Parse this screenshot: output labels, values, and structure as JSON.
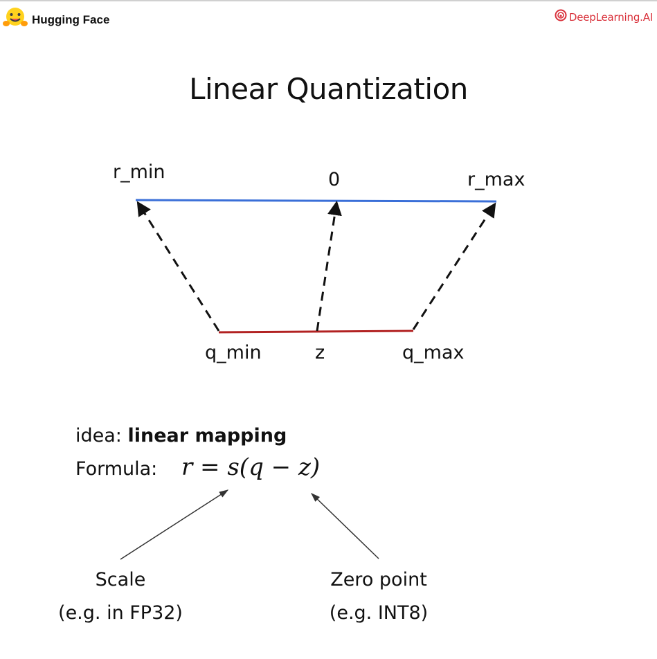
{
  "header": {
    "left_brand": "Hugging Face",
    "left_icon": "hugging-face-emoji-icon",
    "right_brand": "DeepLearning.AI",
    "right_icon": "deeplearning-ai-logo-icon",
    "right_brand_color": "#d9303a"
  },
  "title": "Linear Quantization",
  "diagram": {
    "top_labels": {
      "r_min": "r_min",
      "zero": "0",
      "r_max": "r_max"
    },
    "bottom_labels": {
      "q_min": "q_min",
      "z": "z",
      "q_max": "q_max"
    },
    "real_line_color": "#3a6fd8",
    "quant_line_color": "#b22222"
  },
  "idea": {
    "prefix": "idea: ",
    "emphasis": "linear mapping"
  },
  "formula": {
    "label": "Formula:",
    "expression": "r = s(q − z)"
  },
  "annotations": {
    "scale_title": "Scale",
    "scale_note": "(e.g. in FP32)",
    "zero_point_title": "Zero point",
    "zero_point_note": "(e.g. INT8)"
  }
}
